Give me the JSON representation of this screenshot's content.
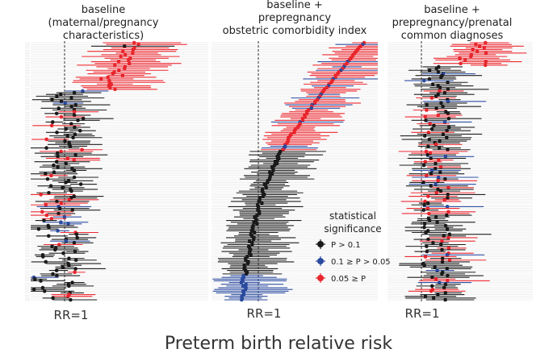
{
  "chart_data": {
    "type": "forest",
    "xlabel": "Preterm birth relative risk",
    "reference_line_label": "RR=1",
    "legend": {
      "title": "statistical significance",
      "title_lines": [
        "statistical",
        "significance"
      ],
      "items": [
        {
          "name": "P > 0.1",
          "color": "#1a1a1a"
        },
        {
          "name": "0.1 ≥ P > 0.05",
          "color": "#2a4a9e"
        },
        {
          "name": "0.05 ≥ P",
          "color": "#e8262d"
        }
      ]
    },
    "panels": [
      {
        "title": "baseline (maternal/pregnancy characteristics)",
        "title_lines": [
          "baseline",
          "(maternal/pregnancy",
          "characteristics)"
        ],
        "x_axis_label": "RR=1",
        "estimate_range_rr": [
          0.6,
          3.4
        ],
        "description": "~150 covariates sorted by significance; strongest red estimates at top reach RR ~3"
      },
      {
        "title": "baseline + prepregnancy obstetric comorbidity index",
        "title_lines": [
          "baseline +",
          "prepregnancy",
          "obstetric comorbidity index"
        ],
        "x_axis_label": "RR=1",
        "estimate_range_rr": [
          0.5,
          3.6
        ],
        "description": "~150 covariates sorted by effect size; S-shaped curve of estimates from RR ~0.8 up to ~3.5"
      },
      {
        "title": "baseline + prepregnancy/prenatal common diagnoses",
        "title_lines": [
          "baseline +",
          "prepregnancy/prenatal",
          "common diagnoses"
        ],
        "x_axis_label": "RR=1",
        "estimate_range_rr": [
          0.5,
          3.0
        ],
        "description": "~150 covariates; estimates scattered around RR 1-1.5 with red outliers at top"
      }
    ],
    "n_rows_per_panel": 150,
    "row_labels_legible": false
  },
  "colors": {
    "not_significant": "#1a1a1a",
    "marginal": "#2a4a9e",
    "significant": "#e8262d",
    "reference_line": "#333333",
    "gridline": "#e6e6e6"
  }
}
